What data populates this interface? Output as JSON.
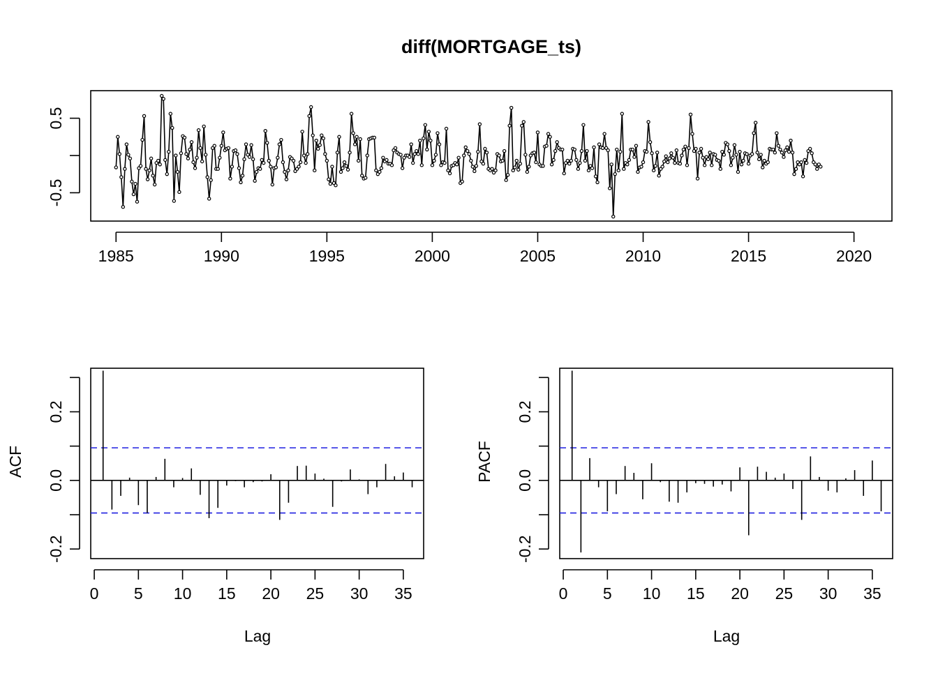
{
  "figure": {
    "title": "diff(MORTGAGE_ts)"
  },
  "chart_data": [
    {
      "type": "line",
      "name": "time-series",
      "x_ticks": [
        1985,
        1990,
        1995,
        2000,
        2005,
        2010,
        2015,
        2020
      ],
      "y_ticks": [
        -0.5,
        0.0,
        0.5
      ],
      "y_tick_labels": [
        "-0.5",
        "",
        "0.5"
      ],
      "xlim": [
        1983.8,
        2021.8
      ],
      "ylim": [
        -0.88,
        0.87
      ],
      "x_start": 1985.0,
      "x_step": 0.0833333,
      "values": [
        -0.16,
        0.25,
        0.02,
        -0.29,
        -0.69,
        -0.18,
        0.15,
        0.01,
        -0.04,
        -0.35,
        -0.52,
        -0.38,
        -0.62,
        -0.17,
        -0.14,
        0.21,
        0.53,
        -0.18,
        -0.32,
        -0.2,
        -0.04,
        -0.27,
        -0.39,
        -0.1,
        -0.07,
        -0.12,
        0.8,
        0.76,
        -0.06,
        -0.25,
        0.05,
        0.56,
        0.37,
        -0.61,
        0.0,
        -0.22,
        -0.49,
        0.03,
        0.26,
        0.24,
        0.02,
        -0.04,
        0.08,
        0.18,
        -0.09,
        -0.17,
        -0.03,
        0.34,
        0.1,
        -0.08,
        0.39,
        0.01,
        -0.29,
        -0.58,
        -0.33,
        0.1,
        0.13,
        -0.18,
        -0.18,
        -0.03,
        0.13,
        0.31,
        0.07,
        0.09,
        0.1,
        -0.31,
        -0.15,
        0.06,
        0.07,
        0.02,
        -0.17,
        -0.36,
        -0.27,
        -0.05,
        0.15,
        0.01,
        -0.02,
        0.14,
        -0.05,
        -0.34,
        -0.22,
        -0.17,
        -0.18,
        -0.06,
        -0.1,
        0.33,
        0.17,
        -0.07,
        -0.15,
        -0.39,
        -0.17,
        -0.16,
        -0.03,
        0.15,
        0.21,
        -0.09,
        -0.22,
        -0.32,
        -0.2,
        -0.02,
        -0.04,
        -0.07,
        -0.21,
        -0.18,
        -0.15,
        -0.09,
        0.32,
        0.0,
        -0.1,
        0.02,
        0.53,
        0.65,
        0.27,
        -0.2,
        0.2,
        0.09,
        0.14,
        0.27,
        0.23,
        0.02,
        -0.07,
        -0.32,
        -0.38,
        -0.15,
        -0.37,
        -0.4,
        0.04,
        0.25,
        -0.22,
        -0.17,
        -0.09,
        -0.14,
        -0.19,
        0.04,
        0.56,
        0.3,
        0.15,
        0.25,
        -0.07,
        0.22,
        -0.27,
        -0.31,
        -0.3,
        0.0,
        0.22,
        0.23,
        0.24,
        0.24,
        -0.2,
        -0.25,
        -0.22,
        -0.17,
        -0.03,
        -0.08,
        -0.06,
        -0.11,
        -0.11,
        -0.13,
        0.07,
        0.1,
        0.04,
        0.02,
        0.01,
        -0.17,
        -0.03,
        0.0,
        0.0,
        -0.02,
        0.15,
        -0.1,
        0.02,
        0.06,
        0.02,
        0.2,
        -0.13,
        0.23,
        0.41,
        0.08,
        0.32,
        0.2,
        -0.13,
        -0.07,
        0.01,
        0.3,
        0.15,
        -0.13,
        -0.09,
        -0.1,
        0.36,
        -0.2,
        -0.24,
        -0.14,
        -0.13,
        -0.1,
        -0.12,
        -0.03,
        -0.37,
        -0.35,
        0.0,
        0.11,
        0.06,
        0.02,
        -0.07,
        -0.15,
        -0.21,
        -0.14,
        0.05,
        0.42,
        -0.08,
        -0.11,
        0.09,
        0.04,
        -0.18,
        -0.2,
        -0.18,
        -0.23,
        -0.2,
        0.02,
        0.0,
        -0.08,
        -0.07,
        0.06,
        -0.33,
        -0.26,
        0.4,
        0.64,
        -0.2,
        -0.16,
        -0.07,
        -0.19,
        -0.11,
        0.4,
        0.45,
        0.01,
        -0.22,
        -0.15,
        0.0,
        0.03,
        0.04,
        -0.09,
        0.31,
        -0.12,
        -0.14,
        -0.14,
        0.12,
        0.13,
        0.29,
        0.25,
        -0.12,
        -0.06,
        0.06,
        0.18,
        0.1,
        0.08,
        0.08,
        -0.24,
        -0.1,
        -0.07,
        -0.11,
        -0.07,
        0.09,
        0.08,
        -0.06,
        -0.18,
        -0.1,
        0.06,
        0.41,
        -0.07,
        0.06,
        -0.2,
        -0.14,
        -0.17,
        0.11,
        -0.28,
        -0.36,
        0.15,
        0.11,
        0.1,
        0.29,
        0.1,
        0.07,
        -0.44,
        -0.12,
        -0.82,
        -0.25,
        0.08,
        -0.2,
        0.05,
        0.56,
        -0.18,
        -0.1,
        -0.12,
        -0.06,
        0.08,
        0.08,
        -0.02,
        0.13,
        -0.22,
        -0.16,
        -0.15,
        -0.09,
        0.06,
        0.05,
        0.45,
        0.18,
        0.03,
        -0.2,
        -0.14,
        0.04,
        -0.27,
        -0.18,
        -0.15,
        -0.08,
        -0.01,
        -0.09,
        -0.04,
        0.03,
        -0.03,
        -0.1,
        0.07,
        -0.1,
        -0.11,
        0.0,
        0.08,
        0.12,
        -0.13,
        0.1,
        0.55,
        0.29,
        0.06,
        0.09,
        -0.31,
        0.04,
        0.09,
        -0.03,
        -0.13,
        -0.02,
        -0.05,
        0.04,
        -0.13,
        0.02,
        0.01,
        -0.06,
        -0.07,
        -0.18,
        0.05,
        0.01,
        0.17,
        0.15,
        0.06,
        -0.13,
        -0.03,
        0.14,
        0.01,
        -0.22,
        0.05,
        -0.12,
        -0.07,
        0.03,
        0.02,
        -0.11,
        0.0,
        0.02,
        0.3,
        0.44,
        0.04,
        -0.05,
        0.01,
        -0.16,
        -0.07,
        -0.11,
        -0.09,
        0.09,
        0.08,
        0.08,
        0.04,
        0.3,
        0.13,
        0.08,
        0.04,
        -0.02,
        0.07,
        0.11,
        0.05,
        0.2,
        0.04,
        -0.25,
        -0.18,
        -0.09,
        -0.12,
        -0.09,
        -0.28,
        -0.06,
        -0.1,
        0.06,
        0.09,
        0.03,
        -0.09,
        -0.12,
        -0.18,
        -0.12,
        -0.15
      ]
    },
    {
      "type": "bar",
      "name": "acf",
      "ylabel": "ACF",
      "xlabel": "Lag",
      "x_ticks": [
        0,
        5,
        10,
        15,
        20,
        25,
        30,
        35
      ],
      "y_ticks": [
        -0.2,
        0.0,
        0.2
      ],
      "y_tick_labels": [
        "-0.2",
        "0.0",
        "0.2"
      ],
      "xlim": [
        -0.4,
        37.3
      ],
      "ylim": [
        -0.228,
        0.327
      ],
      "conf_band": [
        0.095,
        -0.095
      ],
      "lags": [
        1,
        2,
        3,
        4,
        5,
        6,
        7,
        8,
        9,
        10,
        11,
        12,
        13,
        14,
        15,
        16,
        17,
        18,
        19,
        20,
        21,
        22,
        23,
        24,
        25,
        26,
        27,
        28,
        29,
        30,
        31,
        32,
        33,
        34,
        35,
        36
      ],
      "values": [
        0.32,
        -0.085,
        -0.045,
        0.008,
        -0.072,
        -0.095,
        0.01,
        0.063,
        -0.02,
        0.007,
        0.035,
        -0.042,
        -0.11,
        -0.08,
        -0.015,
        -0.002,
        -0.02,
        -0.005,
        -0.003,
        0.018,
        -0.115,
        -0.065,
        0.042,
        0.043,
        0.02,
        0.005,
        -0.077,
        -0.003,
        0.032,
        0.003,
        -0.04,
        -0.02,
        0.048,
        0.012,
        0.023,
        -0.02
      ]
    },
    {
      "type": "bar",
      "name": "pacf",
      "ylabel": "PACF",
      "xlabel": "Lag",
      "x_ticks": [
        0,
        5,
        10,
        15,
        20,
        25,
        30,
        35
      ],
      "y_ticks": [
        -0.2,
        0.0,
        0.2
      ],
      "y_tick_labels": [
        "-0.2",
        "0.0",
        "0.2"
      ],
      "xlim": [
        -0.4,
        37.3
      ],
      "ylim": [
        -0.228,
        0.327
      ],
      "conf_band": [
        0.095,
        -0.095
      ],
      "lags": [
        1,
        2,
        3,
        4,
        5,
        6,
        7,
        8,
        9,
        10,
        11,
        12,
        13,
        14,
        15,
        16,
        17,
        18,
        19,
        20,
        21,
        22,
        23,
        24,
        25,
        26,
        27,
        28,
        29,
        30,
        31,
        32,
        33,
        34,
        35,
        36
      ],
      "values": [
        0.32,
        -0.21,
        0.065,
        -0.02,
        -0.09,
        -0.04,
        0.042,
        0.022,
        -0.055,
        0.05,
        -0.005,
        -0.062,
        -0.065,
        -0.035,
        -0.008,
        -0.01,
        -0.018,
        -0.012,
        -0.032,
        0.038,
        -0.16,
        0.04,
        0.025,
        0.008,
        0.02,
        -0.025,
        -0.115,
        0.07,
        0.01,
        -0.03,
        -0.035,
        0.006,
        0.03,
        -0.045,
        0.058,
        -0.09
      ]
    }
  ]
}
